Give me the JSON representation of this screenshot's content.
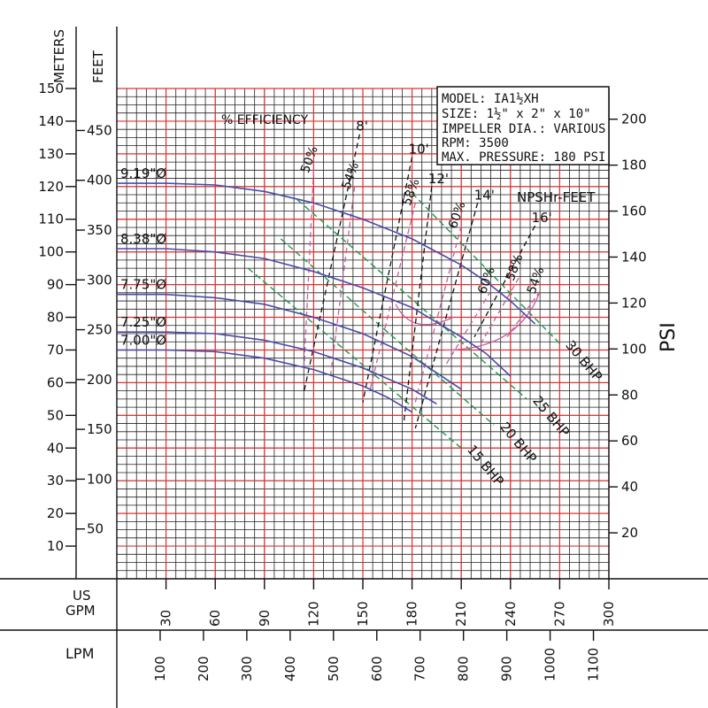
{
  "chart_data": {
    "type": "line",
    "info_box": [
      "MODEL: IA1½XH",
      "SIZE: 1½\" x 2\" x 10\"",
      "IMPELLER DIA.: VARIOUS",
      "RPM: 3500",
      "MAX. PRESSURE: 180 PSI"
    ],
    "axes": {
      "meters_label": "METERS",
      "feet_label": "FEET",
      "psi_label": "PSI",
      "gpm_label": "US GPM",
      "lpm_label": "LPM",
      "meters_ticks": [
        "10",
        "20",
        "30",
        "40",
        "50",
        "60",
        "70",
        "80",
        "90",
        "100",
        "110",
        "120",
        "130",
        "140",
        "150"
      ],
      "feet_ticks": [
        "50",
        "100",
        "150",
        "200",
        "250",
        "300",
        "350",
        "400",
        "450"
      ],
      "psi_ticks": [
        "20",
        "40",
        "60",
        "80",
        "100",
        "120",
        "140",
        "160",
        "180",
        "200"
      ],
      "gpm_ticks": [
        "30",
        "60",
        "90",
        "120",
        "150",
        "180",
        "210",
        "240",
        "270",
        "300"
      ],
      "lpm_ticks": [
        "100",
        "200",
        "300",
        "400",
        "500",
        "600",
        "700",
        "800",
        "900",
        "1000",
        "1100"
      ],
      "gpm_range": [
        0,
        300
      ],
      "meters_range": [
        0,
        150
      ]
    },
    "efficiency_title": "% EFFICIENCY",
    "npsh_title": "NPSHr-FEET",
    "head_curves": [
      {
        "label": "9.19\"Ø",
        "points": [
          [
            0,
            121
          ],
          [
            30,
            121
          ],
          [
            60,
            120.5
          ],
          [
            90,
            118.5
          ],
          [
            120,
            115
          ],
          [
            150,
            110
          ],
          [
            180,
            104
          ],
          [
            210,
            96
          ],
          [
            225,
            91
          ],
          [
            240,
            85
          ],
          [
            255,
            78
          ]
        ]
      },
      {
        "label": "8.38\"Ø",
        "points": [
          [
            0,
            101
          ],
          [
            30,
            101
          ],
          [
            60,
            100
          ],
          [
            90,
            98
          ],
          [
            120,
            94
          ],
          [
            150,
            89
          ],
          [
            180,
            83
          ],
          [
            210,
            74
          ],
          [
            225,
            69
          ],
          [
            240,
            62
          ]
        ]
      },
      {
        "label": "7.75\"Ø",
        "points": [
          [
            0,
            87
          ],
          [
            30,
            87
          ],
          [
            60,
            86
          ],
          [
            90,
            84
          ],
          [
            120,
            80
          ],
          [
            150,
            75
          ],
          [
            180,
            68
          ],
          [
            195,
            63
          ],
          [
            210,
            58
          ]
        ]
      },
      {
        "label": "7.25\"Ø",
        "points": [
          [
            0,
            75.5
          ],
          [
            30,
            75.5
          ],
          [
            60,
            75
          ],
          [
            90,
            73
          ],
          [
            120,
            69.5
          ],
          [
            150,
            64.5
          ],
          [
            180,
            58
          ],
          [
            195,
            53.5
          ]
        ]
      },
      {
        "label": "7.00\"Ø",
        "points": [
          [
            0,
            70
          ],
          [
            30,
            70
          ],
          [
            60,
            69.5
          ],
          [
            90,
            67.5
          ],
          [
            120,
            64
          ],
          [
            150,
            59
          ],
          [
            165,
            55.5
          ],
          [
            180,
            51
          ]
        ]
      }
    ],
    "bhp_lines": [
      {
        "label": "15 BHP",
        "points": [
          [
            80,
            95
          ],
          [
            210,
            40
          ]
        ]
      },
      {
        "label": "20 BHP",
        "points": [
          [
            100,
            104
          ],
          [
            230,
            47
          ]
        ]
      },
      {
        "label": "25 BHP",
        "points": [
          [
            110,
            116
          ],
          [
            250,
            55
          ]
        ]
      },
      {
        "label": "30 BHP",
        "points": [
          [
            180,
            118
          ],
          [
            270,
            72
          ]
        ]
      }
    ],
    "efficiency_lines": [
      {
        "label": "50%",
        "points": [
          [
            120,
            125
          ],
          [
            114,
            63
          ]
        ]
      },
      {
        "label": "54%",
        "points": [
          [
            145,
            120
          ],
          [
            130,
            61
          ]
        ]
      },
      {
        "label": "58%",
        "points": [
          [
            182,
            115
          ],
          [
            154,
            57
          ]
        ]
      },
      {
        "label": "60%",
        "points": [
          [
            210,
            108
          ],
          [
            182,
            54
          ]
        ]
      },
      {
        "label": "60%",
        "points": [
          [
            228,
            88
          ],
          [
            200,
            65
          ]
        ]
      },
      {
        "label": "58%",
        "points": [
          [
            245,
            92
          ],
          [
            222,
            72
          ]
        ]
      },
      {
        "label": "54%",
        "points": [
          [
            258,
            88
          ],
          [
            238,
            74
          ]
        ]
      }
    ],
    "npsh_lines": [
      {
        "label": "8'",
        "points": [
          [
            148,
            136
          ],
          [
            114,
            57
          ]
        ]
      },
      {
        "label": "10'",
        "points": [
          [
            180,
            129
          ],
          [
            150,
            54
          ]
        ]
      },
      {
        "label": "12'",
        "points": [
          [
            192,
            120
          ],
          [
            175,
            48
          ]
        ]
      },
      {
        "label": "14'",
        "points": [
          [
            220,
            115
          ],
          [
            182,
            46
          ]
        ]
      },
      {
        "label": "16'",
        "points": [
          [
            255,
            108
          ],
          [
            218,
            74
          ]
        ]
      }
    ]
  }
}
